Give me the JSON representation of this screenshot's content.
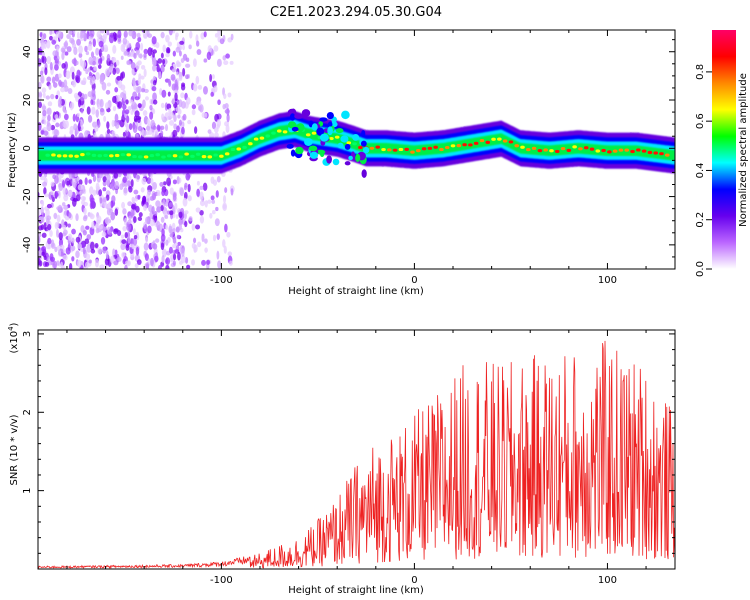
{
  "title": "C2E1.2023.294.05.30.G04",
  "chart_data": [
    {
      "type": "heatmap",
      "xlabel": "Height of straight line (km)",
      "ylabel": "Frequency (Hz)",
      "xlim": [
        -195,
        135
      ],
      "ylim": [
        -50,
        49
      ],
      "xticks": [
        -100,
        0,
        100
      ],
      "yticks": [
        -40,
        -20,
        0,
        20,
        40
      ],
      "colorbar": {
        "label": "Normalized spectral amplitude",
        "range": [
          0,
          0.97
        ],
        "ticks": [
          0.0,
          0.2,
          0.4,
          0.6,
          0.8
        ],
        "tick_labels": [
          "0.0",
          "0.2",
          "0.4",
          "0.6",
          "0.8"
        ],
        "colors": [
          "#ffffff",
          "#bb66ff",
          "#6600ee",
          "#0000ff",
          "#00ffff",
          "#00ff00",
          "#ffff00",
          "#ff8800",
          "#ff0000",
          "#ff0066"
        ]
      },
      "ridge": {
        "x": [
          -195,
          -170,
          -150,
          -130,
          -110,
          -100,
          -90,
          -80,
          -70,
          -62,
          -55,
          -48,
          -40,
          -32,
          -25,
          -15,
          0,
          15,
          30,
          45,
          55,
          70,
          85,
          100,
          115,
          135
        ],
        "freq": [
          -3,
          -3,
          -3,
          -3,
          -3,
          -3,
          0,
          4,
          7,
          8,
          6,
          5,
          4,
          2,
          0,
          0,
          -1,
          0,
          2,
          4,
          0,
          -1,
          0,
          -1,
          -1,
          -3
        ]
      }
    },
    {
      "type": "line",
      "xlabel": "Height of straight line (km)",
      "ylabel": "SNR (10 * v/v)",
      "scale_label": "(x10",
      "scale_exp": "4",
      "scale_close": ")",
      "xlim": [
        -195,
        135
      ],
      "ylim": [
        0,
        3.05
      ],
      "xticks": [
        -100,
        0,
        100
      ],
      "yticks": [
        1,
        2,
        3
      ],
      "color": "#ee2222",
      "envelope": {
        "x": [
          -195,
          -150,
          -120,
          -100,
          -85,
          -70,
          -60,
          -50,
          -40,
          -30,
          -20,
          -10,
          0,
          10,
          20,
          30,
          45,
          60,
          80,
          100,
          120,
          135
        ],
        "y": [
          0.03,
          0.04,
          0.05,
          0.08,
          0.15,
          0.3,
          0.4,
          0.6,
          0.9,
          1.3,
          1.6,
          1.7,
          1.9,
          2.1,
          2.4,
          2.6,
          2.5,
          2.6,
          2.7,
          2.8,
          2.5,
          1.9
        ]
      }
    }
  ]
}
